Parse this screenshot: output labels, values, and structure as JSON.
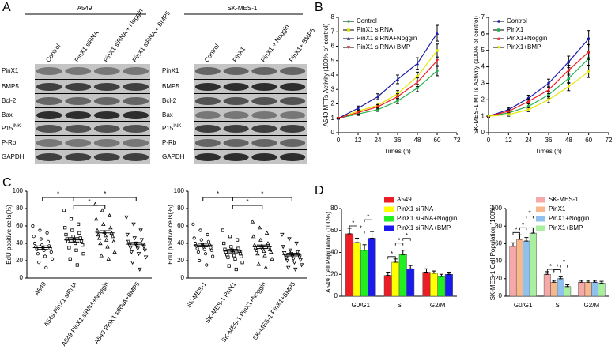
{
  "panel_labels": [
    "A",
    "B",
    "C",
    "D"
  ],
  "blots": [
    {
      "title": "A549",
      "lanes": [
        "Control",
        "PinX1 siRNA",
        "PinX1 siRNA + Noggin",
        "PinX1 siRNA + BMP5"
      ],
      "proteins": [
        "PinX1",
        "BMP5",
        "Bcl-2",
        "Bax",
        {
          "base": "P15",
          "sup": "INK"
        },
        "P-Rb",
        "GAPDH"
      ]
    },
    {
      "title": "SK-MES-1",
      "lanes": [
        "Control",
        "PinX1",
        "PinX1 + Noggin",
        "PinX1+ BMP5"
      ],
      "proteins": [
        "PinX1",
        "BMP5",
        "Bcl-2",
        "Bax",
        {
          "base": "P15",
          "sup": "INK"
        },
        "P-Rb",
        "GAPDH"
      ]
    }
  ],
  "chart_data": [
    {
      "type": "line",
      "ylabel": "A549 MTTs Activity (100% of control)",
      "xlabel": "Times (h)",
      "x": [
        0,
        12,
        24,
        36,
        48,
        60
      ],
      "xlim": [
        0,
        72
      ],
      "xticks": [
        0,
        12,
        24,
        36,
        48,
        60,
        72
      ],
      "ylim": [
        0,
        8
      ],
      "yticks": [
        0,
        1,
        2,
        3,
        4,
        5,
        6,
        7,
        8
      ],
      "legend": "upper left",
      "series": [
        {
          "name": "Control",
          "color": "#22b14c",
          "values": [
            1,
            1.3,
            1.6,
            2.2,
            3.1,
            4.3
          ],
          "errors": [
            0.05,
            0.1,
            0.12,
            0.18,
            0.25,
            0.35
          ]
        },
        {
          "name": "PinX1 siRNA",
          "color": "#e6e600",
          "values": [
            1,
            1.5,
            1.9,
            2.7,
            3.9,
            5.7
          ],
          "errors": [
            0.05,
            0.12,
            0.15,
            0.22,
            0.3,
            0.45
          ]
        },
        {
          "name": "PinX1 siRNA+Noggin",
          "color": "#1a1aa6",
          "values": [
            1,
            1.7,
            2.5,
            3.7,
            4.8,
            6.9
          ],
          "errors": [
            0.05,
            0.15,
            0.2,
            0.3,
            0.4,
            0.55
          ]
        },
        {
          "name": "PinX1 siRNA+BMP",
          "color": "#ee1c24",
          "values": [
            1,
            1.4,
            1.8,
            2.5,
            3.5,
            5.0
          ],
          "errors": [
            0.05,
            0.12,
            0.15,
            0.2,
            0.3,
            0.4
          ]
        }
      ]
    },
    {
      "type": "line",
      "ylabel": "SK-MES-1 MTTs Activity (100% of control)",
      "xlabel": "Times (h)",
      "x": [
        0,
        12,
        24,
        36,
        48,
        60
      ],
      "xlim": [
        0,
        72
      ],
      "xticks": [
        0,
        12,
        24,
        36,
        48,
        60,
        72
      ],
      "ylim": [
        0,
        7
      ],
      "yticks": [
        0,
        1,
        2,
        3,
        4,
        5,
        6,
        7
      ],
      "legend": "upper left",
      "series": [
        {
          "name": "Control",
          "color": "#1a1aa6",
          "values": [
            1,
            1.4,
            2.1,
            3.0,
            4.3,
            5.7
          ],
          "errors": [
            0.05,
            0.12,
            0.18,
            0.25,
            0.35,
            0.5
          ]
        },
        {
          "name": "PinX1",
          "color": "#22b14c",
          "values": [
            1,
            1.2,
            1.6,
            2.3,
            3.3,
            4.5
          ],
          "errors": [
            0.05,
            0.1,
            0.15,
            0.2,
            0.3,
            0.4
          ]
        },
        {
          "name": "PinX1+Noggin",
          "color": "#ee1c24",
          "values": [
            1,
            1.3,
            1.9,
            2.6,
            3.8,
            4.9
          ],
          "errors": [
            0.05,
            0.1,
            0.15,
            0.22,
            0.3,
            0.45
          ]
        },
        {
          "name": "PinX1+BMP",
          "color": "#e6e600",
          "values": [
            1,
            1.1,
            1.4,
            2.0,
            2.8,
            3.7
          ],
          "errors": [
            0.05,
            0.1,
            0.12,
            0.18,
            0.25,
            0.35
          ]
        }
      ]
    },
    {
      "type": "dot",
      "ylabel": "EdU positive cells(%)",
      "categories": [
        "A549",
        "A549 PinX1 siRNA",
        "A549 PinX1 siRNA+Noggin",
        "A549 PinX1 siRNA+BMP5"
      ],
      "ylim": [
        0,
        100
      ],
      "yticks": [
        0,
        20,
        40,
        60,
        80,
        100
      ],
      "points": [
        [
          60,
          55,
          52,
          48,
          45,
          42,
          40,
          38,
          37,
          36,
          35,
          34,
          33,
          32,
          30,
          28,
          25,
          22,
          18,
          12
        ],
        [
          78,
          68,
          62,
          58,
          55,
          52,
          50,
          48,
          46,
          45,
          44,
          43,
          42,
          40,
          38,
          35,
          32,
          28,
          22,
          15
        ],
        [
          85,
          78,
          72,
          68,
          62,
          58,
          55,
          53,
          52,
          50,
          49,
          48,
          46,
          44,
          42,
          40,
          36,
          30,
          26,
          22
        ],
        [
          70,
          62,
          55,
          50,
          46,
          44,
          42,
          40,
          39,
          38,
          37,
          36,
          35,
          34,
          32,
          30,
          28,
          24,
          18,
          10
        ]
      ],
      "means": [
        35,
        44,
        52,
        39
      ],
      "errors": [
        2,
        2.5,
        2.5,
        2
      ],
      "significance": [
        {
          "pair": [
            0,
            1
          ],
          "label": "*"
        },
        {
          "pair": [
            1,
            2
          ],
          "label": "*"
        },
        {
          "pair": [
            1,
            3
          ],
          "label": "*"
        }
      ]
    },
    {
      "type": "dot",
      "ylabel": "EdU positive cells(%)",
      "categories": [
        "SK-MES-1",
        "SK-MES-1 PinX1",
        "SK-MES-1 PinX1+Noggin",
        "SK-MES-1 PinX1+BMP5"
      ],
      "ylim": [
        0,
        100
      ],
      "yticks": [
        0,
        20,
        40,
        60,
        80,
        100
      ],
      "points": [
        [
          62,
          55,
          50,
          46,
          44,
          42,
          40,
          39,
          38,
          37,
          36,
          35,
          34,
          33,
          32,
          30,
          28,
          25,
          20,
          15
        ],
        [
          55,
          48,
          44,
          40,
          36,
          34,
          33,
          32,
          31,
          30,
          29,
          28,
          27,
          26,
          25,
          24,
          22,
          18,
          14,
          10
        ],
        [
          65,
          58,
          52,
          48,
          44,
          40,
          38,
          37,
          36,
          35,
          34,
          33,
          32,
          31,
          30,
          28,
          26,
          22,
          16,
          12
        ],
        [
          50,
          45,
          40,
          36,
          32,
          30,
          29,
          28,
          27,
          26,
          25,
          24,
          23,
          22,
          21,
          20,
          18,
          15,
          12,
          10
        ]
      ],
      "means": [
        38,
        31,
        36,
        27
      ],
      "errors": [
        2,
        2,
        2,
        1.5
      ],
      "significance": [
        {
          "pair": [
            0,
            1
          ],
          "label": "*"
        },
        {
          "pair": [
            1,
            2
          ],
          "label": "*"
        },
        {
          "pair": [
            1,
            3
          ],
          "label": "*"
        }
      ]
    },
    {
      "type": "bar",
      "ylabel": "A549 Cell Population (100%)",
      "categories": [
        "G0/G1",
        "S",
        "G2/M"
      ],
      "ylim": [
        0,
        80
      ],
      "yticks": [
        0,
        20,
        40,
        60,
        80
      ],
      "legend": "upper right",
      "series": [
        {
          "name": "A549",
          "color": "#ee1c24",
          "values": [
            57,
            19,
            22
          ],
          "errors": [
            5,
            3,
            3
          ]
        },
        {
          "name": "PinX1 siRNA",
          "color": "#ffff00",
          "values": [
            49,
            31,
            21
          ],
          "errors": [
            4,
            3,
            2
          ]
        },
        {
          "name": "PinX1 siRNA+Noggin",
          "color": "#22ee22",
          "values": [
            42,
            38,
            18
          ],
          "errors": [
            5,
            4,
            2
          ]
        },
        {
          "name": "PinX1 siRNA+BMP",
          "color": "#1a1aee",
          "values": [
            53,
            25,
            20
          ],
          "errors": [
            6,
            3,
            2
          ]
        }
      ],
      "significance": [
        {
          "category": 0,
          "pair": [
            0,
            1
          ],
          "label": "*"
        },
        {
          "category": 0,
          "pair": [
            1,
            2
          ],
          "label": "*"
        },
        {
          "category": 0,
          "pair": [
            2,
            3
          ],
          "label": "*"
        },
        {
          "category": 1,
          "pair": [
            0,
            1
          ],
          "label": "*"
        },
        {
          "category": 1,
          "pair": [
            1,
            2
          ],
          "label": "*"
        },
        {
          "category": 1,
          "pair": [
            2,
            3
          ],
          "label": "*"
        }
      ]
    },
    {
      "type": "bar",
      "ylabel": "SK-MES-1 Cell Population (100%)",
      "categories": [
        "G0/G1",
        "S",
        "G2/M"
      ],
      "ylim": [
        0,
        100
      ],
      "yticks": [
        0,
        20,
        40,
        60,
        80,
        100
      ],
      "legend": "upper right",
      "series": [
        {
          "name": "SK-MES-1",
          "color": "#f7a8a8",
          "values": [
            57,
            25,
            16
          ],
          "errors": [
            4,
            3,
            2
          ]
        },
        {
          "name": "PinX1",
          "color": "#f8b88b",
          "values": [
            65,
            16,
            16
          ],
          "errors": [
            5,
            2,
            2
          ]
        },
        {
          "name": "PinX1+Noggin",
          "color": "#8fc1ef",
          "values": [
            63,
            20,
            16
          ],
          "errors": [
            4,
            2,
            2
          ]
        },
        {
          "name": "PinX1+BMP",
          "color": "#a8ef9f",
          "values": [
            72,
            11,
            15
          ],
          "errors": [
            6,
            2,
            2
          ]
        }
      ],
      "significance": [
        {
          "category": 0,
          "pair": [
            0,
            1
          ],
          "label": "*"
        },
        {
          "category": 0,
          "pair": [
            1,
            2
          ],
          "label": "*"
        },
        {
          "category": 0,
          "pair": [
            2,
            3
          ],
          "label": "*"
        },
        {
          "category": 1,
          "pair": [
            0,
            1
          ],
          "label": "*"
        },
        {
          "category": 1,
          "pair": [
            1,
            2
          ],
          "label": "*"
        },
        {
          "category": 1,
          "pair": [
            2,
            3
          ],
          "label": "*"
        }
      ]
    }
  ]
}
